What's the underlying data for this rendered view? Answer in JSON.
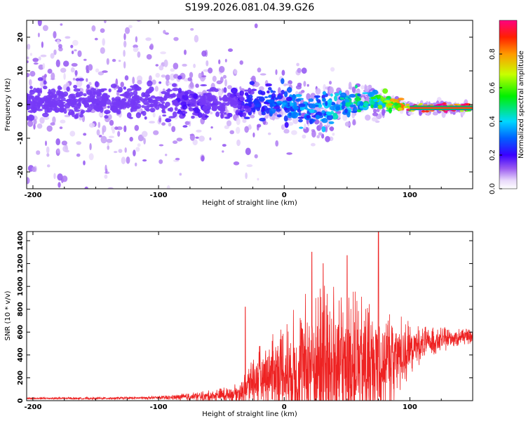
{
  "title": "S199.2026.081.04.39.G26",
  "chart_data": [
    {
      "type": "heatmap",
      "name": "spectrogram",
      "xlabel": "Height of straight line (km)",
      "ylabel": "Frequency (Hz)",
      "xlim": [
        -205,
        150
      ],
      "ylim": [
        -25,
        25
      ],
      "xticks": [
        -200,
        -100,
        0,
        100
      ],
      "yticks": [
        -20,
        -10,
        0,
        10,
        20
      ],
      "colorbar": {
        "label": "Normalized spectral amplitude",
        "range": [
          0,
          1
        ],
        "ticks": [
          0.0,
          0.2,
          0.4,
          0.6,
          0.8
        ]
      },
      "ridge": {
        "description_points_x": [
          -205,
          -150,
          -100,
          -75,
          -50,
          -25,
          0,
          25,
          50,
          75,
          90,
          100,
          150
        ],
        "center_freq": [
          1,
          1,
          1,
          1,
          0,
          1,
          0,
          -2,
          0,
          1,
          0,
          -1,
          -1
        ],
        "peak_amplitude": [
          0.1,
          0.15,
          0.15,
          0.2,
          0.15,
          0.25,
          0.35,
          0.4,
          0.45,
          0.6,
          0.85,
          1.0,
          1.0
        ]
      }
    },
    {
      "type": "line",
      "name": "snr",
      "xlabel": "Height of straight line (km)",
      "ylabel": "SNR (10 * v/v)",
      "xlim": [
        -205,
        150
      ],
      "ylim": [
        0,
        1480
      ],
      "xticks": [
        -200,
        -100,
        0,
        100
      ],
      "yticks": [
        0,
        200,
        400,
        600,
        800,
        1000,
        1200,
        1400
      ],
      "color": "#ee2222",
      "envelope": {
        "x": [
          -205,
          -150,
          -100,
          -80,
          -60,
          -40,
          -32,
          -30,
          -25,
          -20,
          -10,
          0,
          10,
          20,
          30,
          40,
          50,
          60,
          70,
          75,
          80,
          90,
          100,
          110,
          120,
          130,
          140,
          150
        ],
        "base": [
          20,
          20,
          25,
          30,
          40,
          60,
          80,
          120,
          180,
          200,
          250,
          250,
          250,
          300,
          300,
          300,
          300,
          300,
          300,
          300,
          350,
          400,
          450,
          500,
          520,
          540,
          560,
          560
        ],
        "amplitude": [
          10,
          10,
          15,
          30,
          50,
          80,
          120,
          200,
          250,
          280,
          350,
          450,
          600,
          700,
          750,
          750,
          700,
          650,
          600,
          600,
          500,
          400,
          250,
          150,
          120,
          100,
          80,
          60
        ]
      },
      "notable_peaks": [
        {
          "x": -31,
          "y": 820
        },
        {
          "x": 22,
          "y": 1300
        },
        {
          "x": 31,
          "y": 1200
        },
        {
          "x": 50,
          "y": 1270
        },
        {
          "x": 75,
          "y": 1480
        }
      ]
    }
  ]
}
